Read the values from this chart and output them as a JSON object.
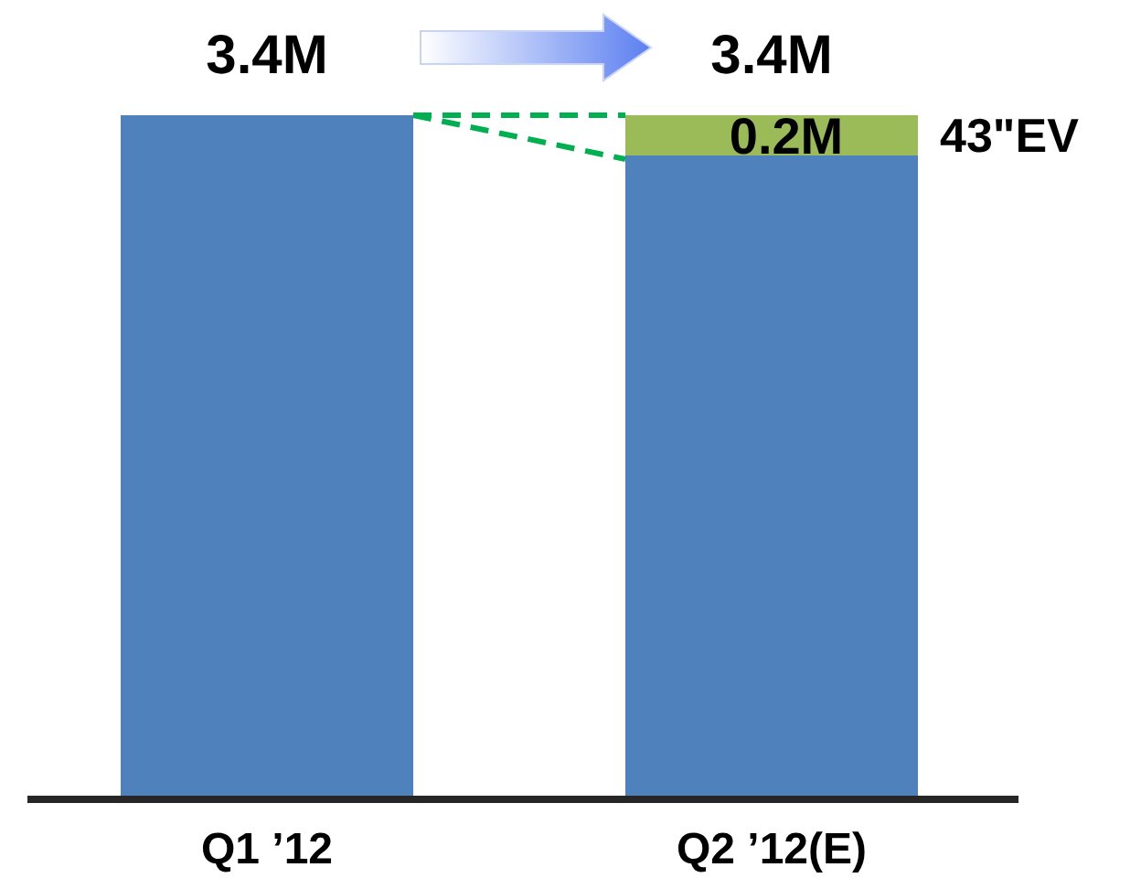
{
  "chart_data": {
    "type": "bar",
    "stacked": true,
    "categories": [
      "Q1 ’12",
      "Q2 ’12(E)"
    ],
    "ylim": [
      0,
      3.4
    ],
    "tick_labels": "x",
    "series": [
      {
        "color": "#4f81bd",
        "values": [
          3.4,
          3.2
        ]
      },
      {
        "name": "43\"EV",
        "color": "#9bbb59",
        "values": [
          null,
          0.2
        ],
        "value_labels": [
          null,
          "0.2M"
        ]
      }
    ],
    "totals": [
      "3.4M",
      "3.4M"
    ]
  }
}
